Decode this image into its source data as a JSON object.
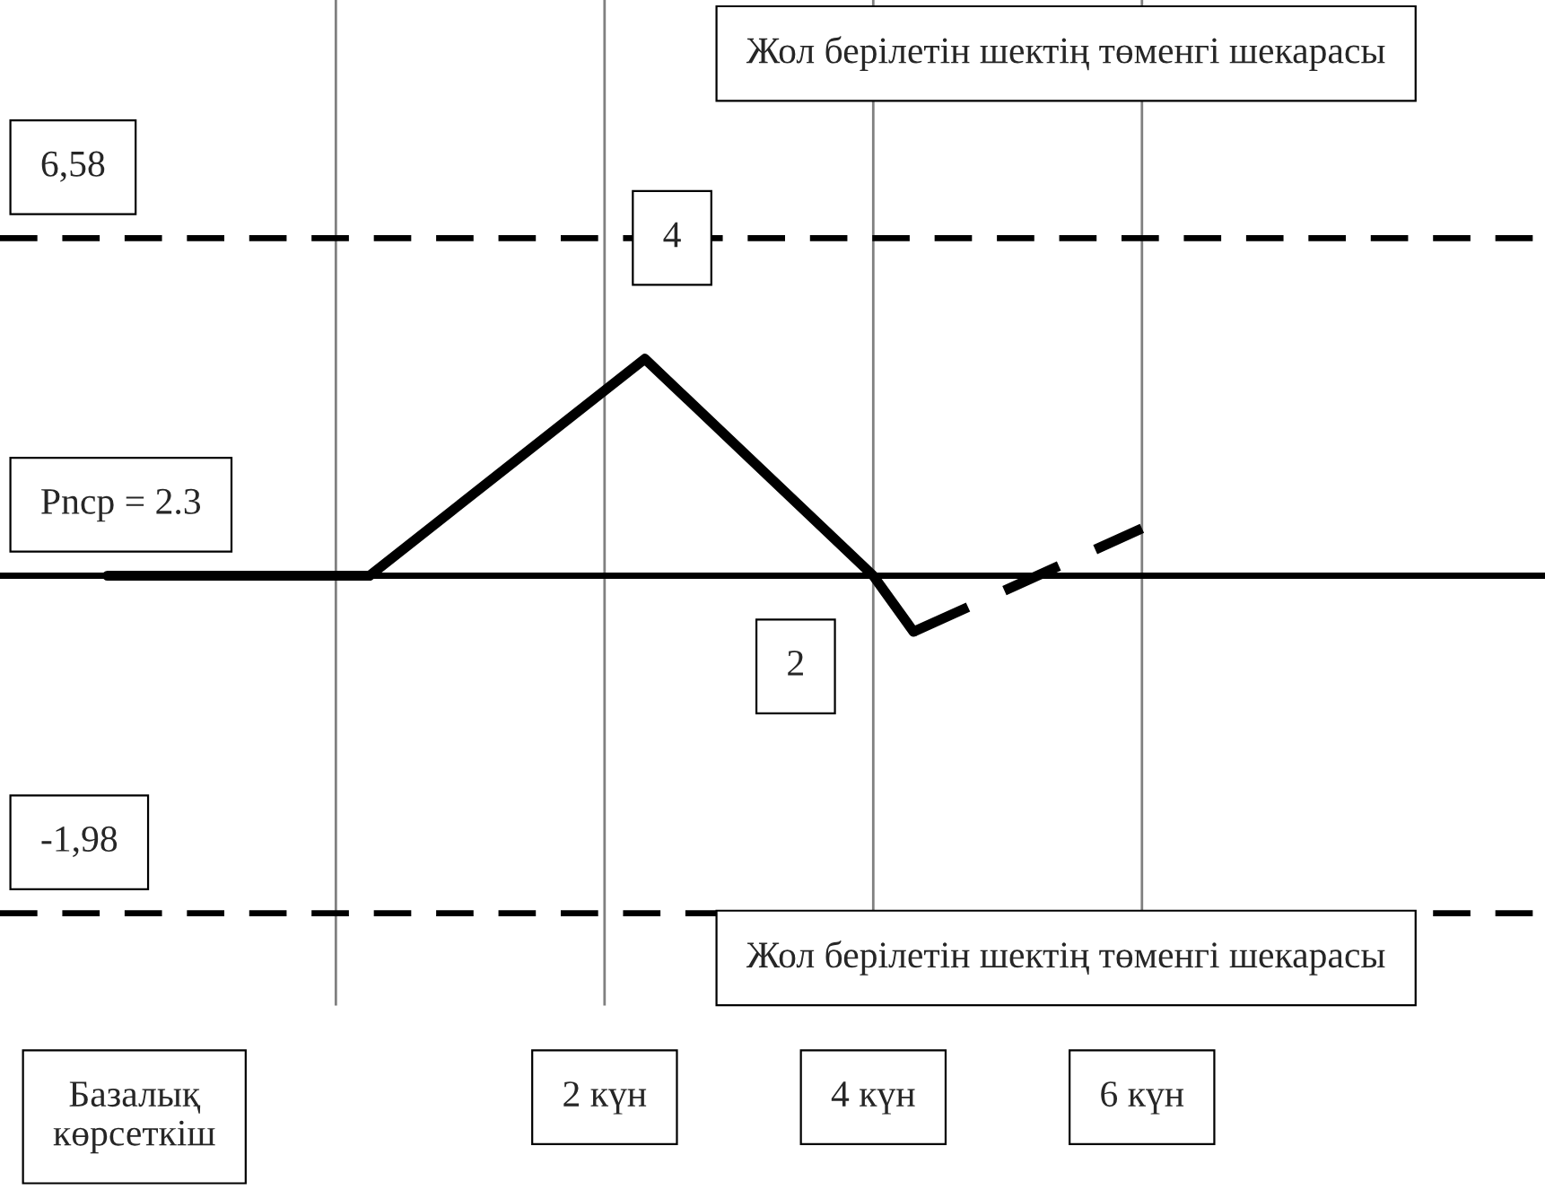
{
  "chart_data": {
    "type": "line",
    "x": [
      -1.7,
      0.25,
      2.3,
      4.0,
      4.3
    ],
    "series": [
      {
        "color": "#000000",
        "values": [
          2.3,
          2.3,
          5.05,
          2.3,
          1.59
        ],
        "line_style": "solid"
      },
      {
        "color": "#000000",
        "x": [
          4.3,
          6
        ],
        "values": [
          1.59,
          2.9
        ],
        "line_style": "dashed"
      }
    ],
    "xlim": [
      -2.5,
      9
    ],
    "ylim": [
      -3.15,
      9.6
    ],
    "xticks": [
      {
        "value": -1.5,
        "label": "Базалық\nкөрсеткіш"
      },
      {
        "value": 2,
        "label": "2 күн"
      },
      {
        "value": 4,
        "label": "4 күн"
      },
      {
        "value": 6,
        "label": "6 күн"
      }
    ],
    "tick_labels": "x",
    "grid": false,
    "legend": false,
    "marker": "none",
    "ref_lines": [
      {
        "axis": "y",
        "value": 6.58,
        "label": "6,58",
        "line_style": "dashed",
        "color": "#000000"
      },
      {
        "axis": "y",
        "value": 2.3,
        "label": "Pncp = 2.3",
        "line_style": "solid",
        "color": "#000000"
      },
      {
        "axis": "y",
        "value": -1.98,
        "label": "-1,98",
        "line_style": "dashed",
        "color": "#000000"
      },
      {
        "axis": "x",
        "value": 0,
        "line_style": "solid",
        "color": "#808080"
      },
      {
        "axis": "x",
        "value": 2,
        "line_style": "solid",
        "color": "#808080"
      },
      {
        "axis": "x",
        "value": 4,
        "line_style": "solid",
        "color": "#808080"
      },
      {
        "axis": "x",
        "value": 6,
        "line_style": "solid",
        "color": "#808080"
      }
    ],
    "annotations": [
      "Жол берілетін шектің төменгі шекарасы",
      "Жол берілетін шектің төменгі шекарасы",
      "4",
      "2"
    ]
  }
}
